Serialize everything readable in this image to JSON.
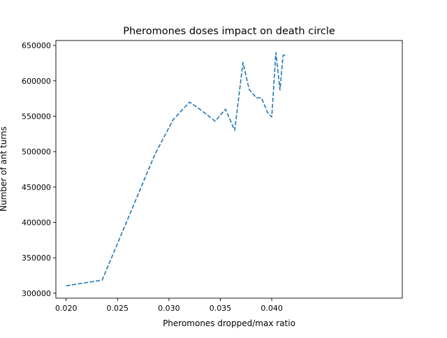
{
  "chart_data": {
    "type": "line",
    "title": "Pheromones doses impact on death circle",
    "xlabel": "Pheromones dropped/max ratio",
    "ylabel": "Number of ant turns",
    "xlim": [
      0.019,
      0.0527
    ],
    "ylim": [
      293000,
      657000
    ],
    "x_ticks": [
      0.02,
      0.025,
      0.03,
      0.035,
      0.04
    ],
    "x_tick_labels": [
      "0.020",
      "0.025",
      "0.030",
      "0.035",
      "0.040"
    ],
    "y_ticks": [
      300000,
      350000,
      400000,
      450000,
      500000,
      550000,
      600000,
      650000
    ],
    "y_tick_labels": [
      "300000",
      "350000",
      "400000",
      "450000",
      "500000",
      "550000",
      "600000",
      "650000"
    ],
    "grid": false,
    "line_style": "dashed",
    "color": "#1f77b4",
    "series": [
      {
        "x": [
          0.02,
          0.0235,
          0.0286,
          0.0304,
          0.032,
          0.033,
          0.0345,
          0.0355,
          0.0364,
          0.0372,
          0.0378,
          0.0385,
          0.039,
          0.0396,
          0.04,
          0.0404,
          0.0408,
          0.0411,
          0.0415
        ],
        "y": [
          310500,
          318500,
          495000,
          545000,
          570000,
          560000,
          543000,
          560000,
          530000,
          626000,
          588000,
          576000,
          576000,
          555000,
          549000,
          640000,
          587000,
          636000,
          637000
        ]
      }
    ]
  }
}
